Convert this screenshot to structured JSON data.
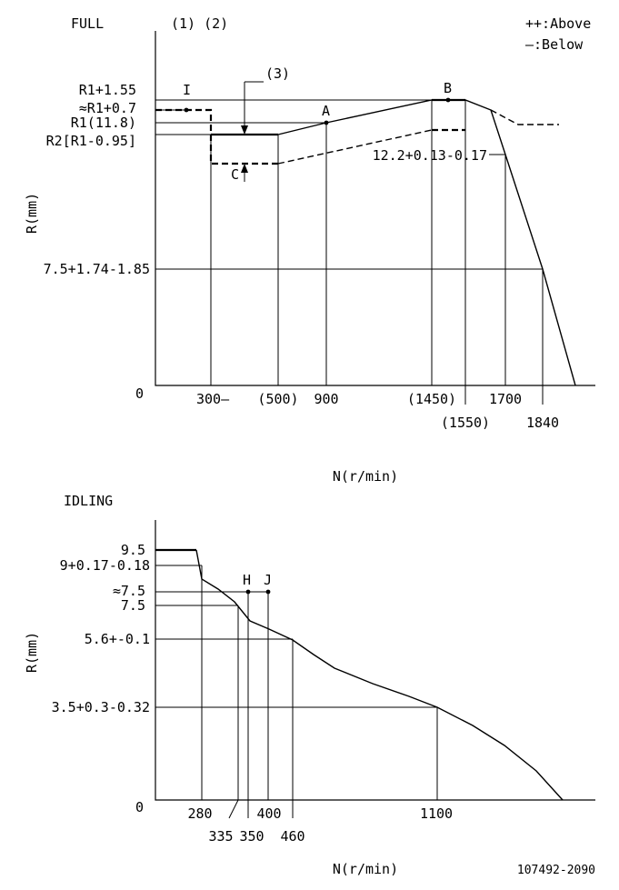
{
  "full": {
    "title": "FULL",
    "notes": "(1) (2)",
    "legend_above": "++:Above",
    "legend_below": "—:Below",
    "ylabel": "R(mm)",
    "xlabel": "N(r/min)",
    "origin": "0",
    "rack_labels": {
      "r1_plus_155": "R1+1.55",
      "approx_r1_plus_07": "≈R1+0.7",
      "r1": "R1(11.8)",
      "r2": "R2[R1-0.95]",
      "r_122": "12.2+0.13-0.17",
      "r_75": "7.5+1.74-1.85"
    },
    "x_ticks": {
      "t300": "300—",
      "t500": "(500)",
      "t900": "900",
      "t1450": "(1450)",
      "t1550": "(1550)",
      "t1700": "1700",
      "t1840": "1840"
    },
    "points": {
      "I": "I",
      "A": "A",
      "B": "B",
      "C": "C"
    },
    "note3": "(3)"
  },
  "idling": {
    "title": "IDLING",
    "ylabel": "R(mm)",
    "xlabel": "N(r/min)",
    "origin": "0",
    "rack_labels": {
      "r95": "9.5",
      "r9": "9+0.17-0.18",
      "approx75": "≈7.5",
      "r75": "7.5",
      "r56": "5.6+-0.1",
      "r35": "3.5+0.3-0.32"
    },
    "x_ticks": {
      "t280": "280",
      "t335": "335",
      "t350": "350",
      "t400": "400",
      "t460": "460",
      "t1100": "1100"
    },
    "points": {
      "H": "H",
      "J": "J"
    }
  },
  "doc_number": "107492-2090",
  "chart_data": [
    {
      "type": "line",
      "title": "FULL",
      "xlabel": "N(r/min)",
      "ylabel": "R(mm)",
      "series": [
        {
          "name": "",
          "x": [
            300,
            500,
            900,
            1450,
            1550,
            1640,
            1700,
            1840,
            1930
          ],
          "y": [
            11.8,
            11.8,
            12.1,
            12.2,
            12.2,
            12.2,
            11.9,
            7.5,
            0
          ]
        }
      ]
    },
    {
      "type": "line",
      "title": "IDLING",
      "xlabel": "N(r/min)",
      "ylabel": "R(mm)",
      "series": [
        {
          "name": "",
          "x": [
            0,
            265,
            280,
            335,
            350,
            400,
            460,
            550,
            800,
            1100,
            1300,
            1480
          ],
          "y": [
            9.5,
            9.5,
            8.7,
            7.8,
            7.6,
            6.3,
            5.6,
            5.0,
            4.2,
            3.5,
            2.0,
            0
          ]
        }
      ]
    }
  ]
}
